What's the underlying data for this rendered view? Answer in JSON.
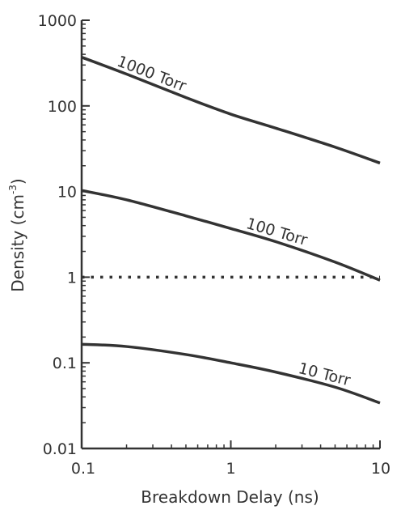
{
  "chart_data": {
    "type": "line",
    "xlabel": "Breakdown Delay (ns)",
    "ylabel_main": "Density (cm",
    "ylabel_sup": "-3",
    "ylabel_close": ")",
    "xscale": "log",
    "yscale": "log",
    "xlim": [
      0.1,
      10
    ],
    "ylim": [
      0.01,
      1000
    ],
    "xticks": [
      0.1,
      1,
      10
    ],
    "xtick_labels": [
      "0.1",
      "1",
      "10"
    ],
    "yticks": [
      0.01,
      0.1,
      1,
      10,
      100,
      1000
    ],
    "ytick_labels": [
      "0.01",
      "0.1",
      "1",
      "10",
      "100",
      "1000"
    ],
    "grid": false,
    "series": [
      {
        "name": "1000 Torr",
        "color": "#333333",
        "style": "solid",
        "x": [
          0.1,
          0.2,
          0.5,
          1,
          2,
          5,
          10
        ],
        "y": [
          370,
          235,
          125,
          80,
          55,
          33,
          21.5
        ]
      },
      {
        "name": "100 Torr",
        "color": "#333333",
        "style": "solid",
        "x": [
          0.1,
          0.2,
          0.5,
          1,
          2,
          5,
          10
        ],
        "y": [
          10.3,
          8.0,
          5.2,
          3.7,
          2.6,
          1.5,
          0.92
        ]
      },
      {
        "name": "10 Torr",
        "color": "#333333",
        "style": "solid",
        "x": [
          0.1,
          0.2,
          0.5,
          1,
          2,
          5,
          10
        ],
        "y": [
          0.165,
          0.155,
          0.125,
          0.1,
          0.078,
          0.052,
          0.034
        ]
      }
    ],
    "reference_line": {
      "y": 1,
      "style": "dotted",
      "color": "#333333"
    }
  }
}
